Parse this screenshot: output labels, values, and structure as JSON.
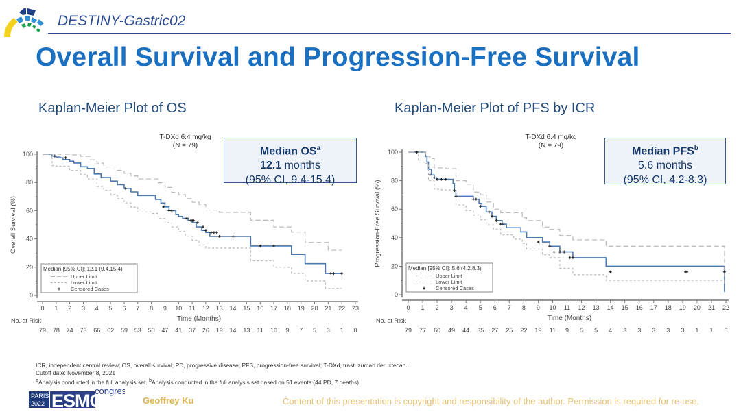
{
  "header": {
    "study_name": "DESTINY-Gastric02",
    "title": "Overall Survival and Progression-Free Survival"
  },
  "colors": {
    "title_blue": "#1a6fc0",
    "curve_blue": "#4a78b0",
    "ci_gray": "#b8b8b8",
    "box_border": "#3b5a8c",
    "footer_gold": "#e0b255"
  },
  "chart_data": [
    {
      "type": "line",
      "subtype": "kaplan-meier",
      "title": "Kaplan-Meier Plot of OS",
      "arm_label_line1": "T-DXd 6.4 mg/kg",
      "arm_label_line2": "(N = 79)",
      "xlabel": "Time (Months)",
      "ylabel": "Overall Survival (%)",
      "xlim": [
        0,
        23
      ],
      "ylim": [
        0,
        100
      ],
      "xticks": [
        0,
        1,
        2,
        3,
        4,
        5,
        6,
        7,
        8,
        9,
        10,
        11,
        12,
        13,
        14,
        15,
        16,
        17,
        18,
        19,
        20,
        21,
        22,
        23
      ],
      "yticks": [
        0,
        20,
        40,
        60,
        80,
        100
      ],
      "median_box": {
        "heading": "Median OS",
        "heading_sup": "a",
        "value": "12.1",
        "unit": " months",
        "ci": "(95% CI, 9.4-15.4)"
      },
      "legend": {
        "position": "bottom-left",
        "title": "Median [95% CI]: 12.1 (9.4,15.4)",
        "entries": [
          "Upper Limit",
          "Lower Limit",
          "Censored Cases"
        ]
      },
      "at_risk_label": "No. at Risk",
      "at_risk": [
        79,
        78,
        74,
        73,
        66,
        62,
        59,
        53,
        50,
        47,
        41,
        37,
        26,
        19,
        14,
        13,
        11,
        10,
        9,
        7,
        5,
        3,
        1,
        0
      ],
      "series": [
        {
          "name": "KM estimate",
          "x": [
            0,
            0.7,
            1.0,
            1.3,
            1.5,
            2.0,
            2.3,
            2.8,
            3.3,
            3.8,
            4.3,
            5.0,
            5.5,
            6.0,
            6.5,
            7.0,
            8.0,
            8.3,
            8.7,
            9.0,
            9.3,
            9.8,
            10.0,
            10.3,
            10.7,
            11.0,
            11.3,
            11.7,
            12.0,
            12.3,
            13.0,
            15.3,
            17.0,
            18.3,
            19.3,
            20.8,
            21.0,
            22.0
          ],
          "y": [
            100,
            98.7,
            98,
            97.5,
            96.2,
            95,
            93.7,
            91.1,
            89.9,
            86,
            83.5,
            81,
            78.4,
            75.8,
            73.3,
            70.7,
            70.7,
            68,
            65.4,
            62.7,
            60,
            57.4,
            56,
            54.6,
            53,
            51.5,
            48.5,
            46,
            44.5,
            41.8,
            41.8,
            35,
            35,
            29,
            22.5,
            15.5,
            15.5,
            15.5
          ]
        },
        {
          "name": "Upper Limit",
          "x": [
            0,
            1.0,
            2.0,
            2.8,
            3.5,
            4.0,
            4.5,
            5.5,
            6.0,
            6.5,
            7.0,
            8.0,
            8.5,
            9.0,
            9.5,
            10.0,
            10.5,
            11.0,
            11.5,
            12.0,
            13.0,
            15.3,
            17.0,
            18.3,
            19.3,
            21.0,
            22.0
          ],
          "y": [
            100,
            100,
            99.5,
            98.5,
            96,
            93.6,
            91,
            88.6,
            86.5,
            84.6,
            82.5,
            82.5,
            79.8,
            76.5,
            73,
            71.4,
            68.5,
            66,
            64.5,
            60.4,
            58.8,
            53.2,
            48.5,
            44.8,
            37.5,
            32,
            32
          ]
        },
        {
          "name": "Lower Limit",
          "x": [
            0,
            0.7,
            1.0,
            2.0,
            2.8,
            3.3,
            4.0,
            4.5,
            5.0,
            5.5,
            6.0,
            6.5,
            7.0,
            8.0,
            8.5,
            9.0,
            9.5,
            10.0,
            10.5,
            11.0,
            11.5,
            12.0,
            13.0,
            15.3,
            17.0,
            18.3,
            19.3,
            20.8,
            21.0,
            22.0
          ],
          "y": [
            100,
            92,
            91.5,
            88.5,
            85.5,
            82.5,
            77.2,
            74.5,
            71.5,
            68.5,
            65.5,
            62.5,
            59,
            58,
            54.5,
            51.5,
            48.5,
            45.2,
            42,
            39,
            35.7,
            33.5,
            33.5,
            24.5,
            20,
            15.5,
            10.2,
            5,
            5,
            5
          ]
        }
      ],
      "censored": {
        "x": [
          0.9,
          1.7,
          6.1,
          8.9,
          9.3,
          9.5,
          10.6,
          10.9,
          11.0,
          11.1,
          11.4,
          11.8,
          12.0,
          12.4,
          12.6,
          12.8,
          13.0,
          14.0,
          16.0,
          17.0,
          21.2,
          21.4,
          22.0
        ],
        "y": [
          98.7,
          97.5,
          75.8,
          62.7,
          60,
          60,
          54.6,
          53,
          53,
          53,
          51.5,
          48.5,
          46,
          44.5,
          44.5,
          44.5,
          41.8,
          41.8,
          35,
          35,
          15.5,
          15.5,
          15.5
        ]
      }
    },
    {
      "type": "line",
      "subtype": "kaplan-meier",
      "title": "Kaplan-Meier Plot of PFS by ICR",
      "arm_label_line1": "T-DXd 6.4 mg/kg",
      "arm_label_line2": "(N = 79)",
      "xlabel": "Time (Months)",
      "ylabel": "Progression-Free Survival (%)",
      "xlim": [
        0,
        22
      ],
      "ylim": [
        0,
        100
      ],
      "xticks": [
        0,
        1,
        2,
        3,
        4,
        5,
        6,
        7,
        8,
        9,
        10,
        11,
        12,
        13,
        14,
        15,
        16,
        17,
        18,
        19,
        20,
        21,
        22
      ],
      "yticks": [
        0,
        20,
        40,
        60,
        80,
        100
      ],
      "median_box": {
        "heading": "Median PFS",
        "heading_sup": "b",
        "value": "5.6",
        "unit": " months",
        "ci": "(95% CI, 4.2-8.3)"
      },
      "legend": {
        "position": "bottom-left",
        "title": "Median [95% CI]: 5.6 (4.2,8.3)",
        "entries": [
          "Upper Limit",
          "Lower Limit",
          "Censored Cases"
        ]
      },
      "at_risk_label": "No. at Risk",
      "at_risk": [
        79,
        77,
        60,
        49,
        44,
        35,
        27,
        25,
        22,
        19,
        11,
        9,
        5,
        5,
        4,
        3,
        3,
        3,
        3,
        3,
        1,
        1,
        0
      ],
      "series": [
        {
          "name": "KM estimate",
          "x": [
            0,
            1.2,
            1.3,
            1.4,
            1.6,
            1.8,
            2.0,
            2.4,
            3.1,
            3.2,
            3.3,
            4.0,
            4.5,
            4.9,
            5.1,
            5.4,
            5.8,
            6.1,
            6.5,
            6.8,
            7.3,
            7.8,
            8.2,
            9.3,
            9.8,
            10.5,
            11.4,
            13.7,
            21.9
          ],
          "y": [
            100,
            97,
            93,
            88,
            84,
            82,
            81,
            81,
            78,
            73,
            69,
            69,
            67,
            64,
            62,
            58,
            55,
            52,
            49.5,
            47,
            47,
            44,
            40,
            37,
            34,
            30,
            26,
            20,
            16
          ]
        },
        {
          "name": "Upper Limit",
          "x": [
            0,
            1.2,
            1.5,
            1.8,
            2.6,
            3.3,
            4.0,
            4.5,
            5.0,
            5.4,
            5.9,
            6.4,
            7.3,
            7.9,
            8.2,
            9.3,
            9.8,
            10.5,
            11.4,
            13.7,
            21.9
          ],
          "y": [
            100,
            97,
            95.5,
            89,
            88.5,
            80,
            77.5,
            72,
            70,
            65,
            60,
            57.5,
            57.5,
            54,
            52,
            47.5,
            45.8,
            41.5,
            38.5,
            34,
            30
          ]
        },
        {
          "name": "Lower Limit",
          "x": [
            0,
            0.7,
            1.2,
            1.4,
            1.8,
            2.3,
            3.0,
            3.3,
            4.0,
            4.5,
            5.0,
            5.4,
            5.9,
            6.4,
            7.3,
            7.9,
            8.2,
            9.3,
            9.8,
            10.5,
            11.4,
            13.7,
            21.9
          ],
          "y": [
            100,
            93,
            92,
            80,
            74,
            73.5,
            73.5,
            63,
            59,
            56,
            52.5,
            49,
            46,
            42,
            39,
            36,
            32,
            28,
            26,
            18.5,
            14,
            10,
            6
          ]
        }
      ],
      "censored": {
        "x": [
          0.6,
          1.5,
          1.8,
          2.0,
          2.3,
          2.6,
          3.2,
          3.3,
          4.5,
          4.7,
          5.0,
          5.6,
          5.8,
          6.1,
          6.4,
          6.5,
          9.0,
          9.8,
          10.1,
          10.5,
          10.8,
          11.2,
          11.4,
          14.0,
          19.2,
          19.3,
          21.9
        ],
        "y": [
          100,
          84,
          82,
          81,
          81,
          81,
          73,
          69,
          67,
          67,
          62,
          58,
          55,
          52,
          49.5,
          49.5,
          37,
          34,
          30,
          30,
          30,
          26,
          26,
          16,
          16,
          16,
          16
        ]
      }
    }
  ],
  "footnotes": {
    "line1": "ICR, independent central review; OS, overall survival; PD, progressive disease; PFS, progression-free survival; T-DXd, trastuzumab deruxtecan.",
    "line2": "Cutoff date: November 8, 2021",
    "line3_sup_a": "a",
    "line3_a": "Analysis conducted in the full analysis set. ",
    "line3_sup_b": "b",
    "line3_b": "Analysis conducted in the full analysis set based on 51 events (44 PD, 7 deaths)."
  },
  "footer": {
    "congress_city": "PARIS",
    "congress_year": "2022",
    "congress_brand": "ESMO",
    "congress_word": "congress",
    "author": "Geoffrey Ku",
    "copyright": "Content of this presentation is copyright and responsibility of the author. Permission is required for re-use."
  }
}
